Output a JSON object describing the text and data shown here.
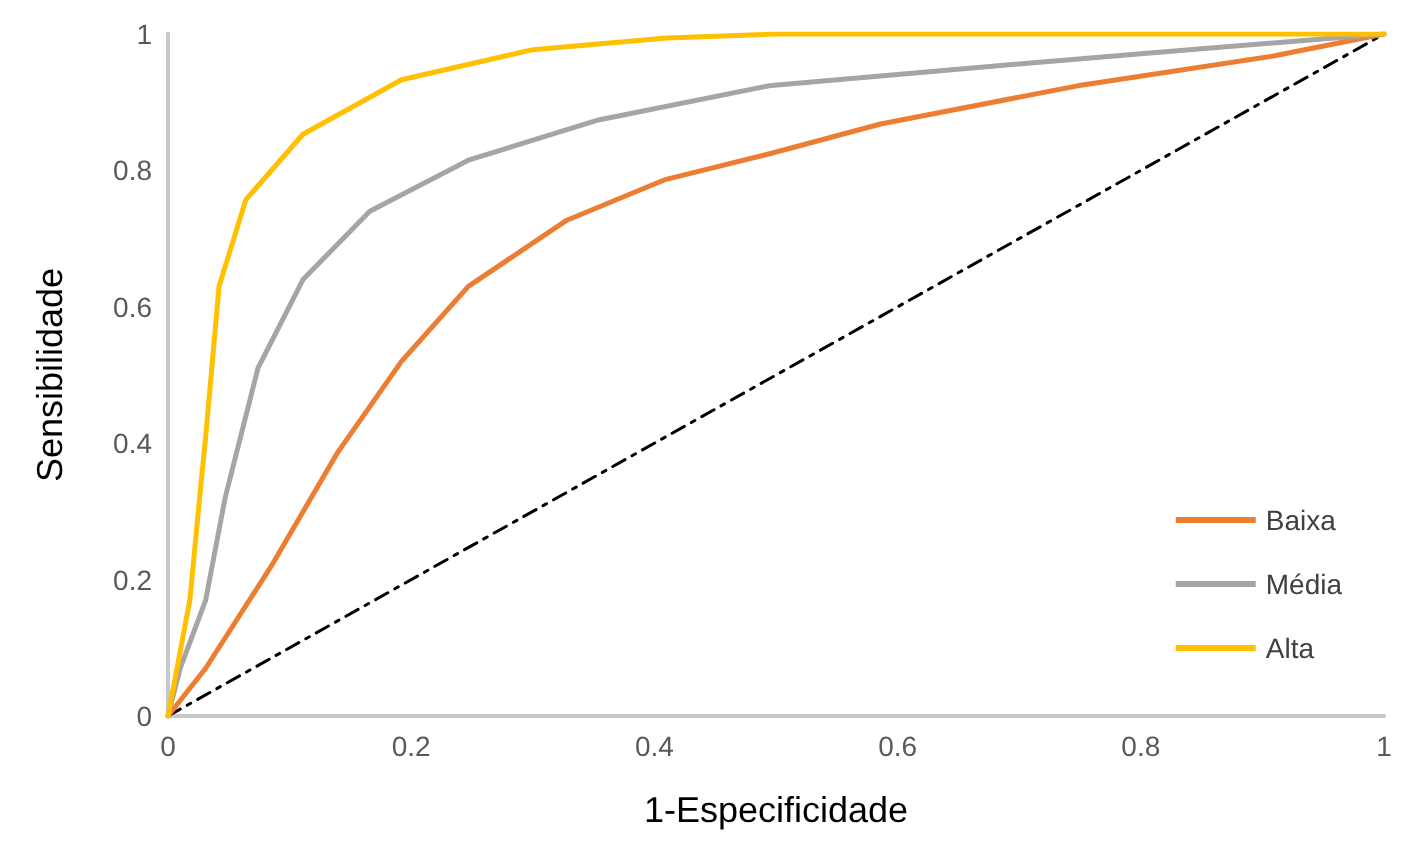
{
  "chart_data": {
    "type": "line",
    "xlabel": "1-Especificidade",
    "ylabel": "Sensibilidade",
    "xlim": [
      0,
      1
    ],
    "xticks": [
      0,
      0.2,
      0.4,
      0.6,
      0.8,
      1
    ],
    "ylim": [
      0,
      1
    ],
    "yticks": [
      0,
      0.2,
      0.4,
      0.6,
      0.8,
      1
    ],
    "grid": false,
    "legend": "bottom right",
    "marker": "none",
    "series": [
      {
        "name": "Baixa",
        "color": "#ed7d31",
        "x": [
          0,
          0.031,
          0.085,
          0.139,
          0.192,
          0.247,
          0.328,
          0.408,
          0.494,
          0.586,
          0.748,
          0.91,
          1
        ],
        "values": [
          0,
          0.07,
          0.22,
          0.385,
          0.52,
          0.63,
          0.727,
          0.786,
          0.824,
          0.868,
          0.924,
          0.968,
          1
        ]
      },
      {
        "name": "Média",
        "color": "#a5a5a5",
        "x": [
          0,
          0.01,
          0.031,
          0.047,
          0.074,
          0.111,
          0.166,
          0.247,
          0.354,
          0.494,
          0.64,
          0.8,
          1
        ],
        "values": [
          0,
          0.07,
          0.17,
          0.32,
          0.51,
          0.64,
          0.74,
          0.815,
          0.874,
          0.924,
          0.947,
          0.971,
          1
        ]
      },
      {
        "name": "Alta",
        "color": "#ffc000",
        "x": [
          0,
          0.018,
          0.026,
          0.031,
          0.042,
          0.064,
          0.111,
          0.192,
          0.3,
          0.41,
          0.5,
          0.6,
          0.8,
          1
        ],
        "values": [
          0,
          0.17,
          0.32,
          0.41,
          0.63,
          0.757,
          0.853,
          0.933,
          0.977,
          0.994,
          1,
          1,
          1,
          1
        ]
      },
      {
        "type": "line",
        "color": "#000000",
        "line_style": "dashed",
        "x": [
          0,
          1
        ],
        "values": [
          0,
          1
        ]
      }
    ]
  }
}
